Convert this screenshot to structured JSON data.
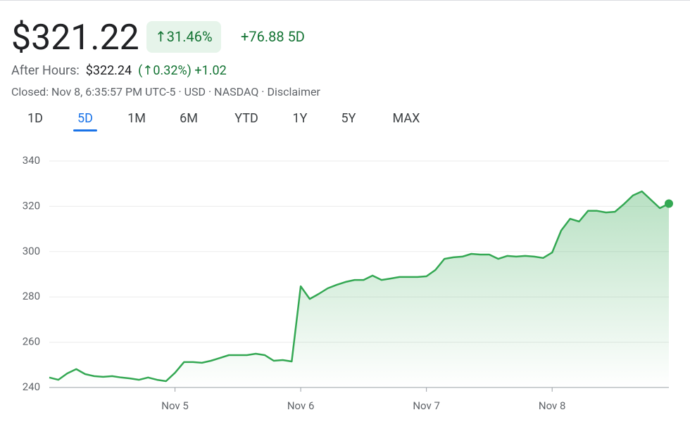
{
  "header": {
    "price": "$321.22",
    "change_pct": "↑31.46%",
    "change_abs": "+76.88",
    "period": "5D",
    "after_hours_label": "After Hours:",
    "after_hours_price": "$322.24",
    "after_hours_pct": "(↑0.32%)",
    "after_hours_abs": "+1.02",
    "closed_info": "Closed: Nov 8, 6:35:57 PM UTC-5 · USD · NASDAQ ·",
    "disclaimer": "Disclaimer"
  },
  "tabs": {
    "items": [
      "1D",
      "5D",
      "1M",
      "6M",
      "YTD",
      "1Y",
      "5Y",
      "MAX"
    ],
    "selected": "5D"
  },
  "chart_data": {
    "type": "line",
    "categories": [
      null,
      null,
      null,
      null,
      null,
      null,
      null,
      null,
      null,
      null,
      null,
      null,
      null,
      null,
      "Nov 5",
      null,
      null,
      null,
      null,
      null,
      null,
      null,
      null,
      null,
      null,
      null,
      null,
      null,
      "Nov 6",
      null,
      null,
      null,
      null,
      null,
      null,
      null,
      null,
      null,
      null,
      null,
      null,
      null,
      "Nov 7",
      null,
      null,
      null,
      null,
      null,
      null,
      null,
      null,
      null,
      null,
      null,
      null,
      null,
      "Nov 8",
      null,
      null,
      null,
      null,
      null,
      null,
      null,
      null,
      null,
      null,
      null,
      null,
      null
    ],
    "series": [
      {
        "color": "#34a853",
        "values": [
          244.4,
          243.4,
          246.2,
          248.1,
          245.9,
          245,
          244.7,
          245,
          244.4,
          244,
          243.4,
          244.4,
          243.4,
          242.8,
          246.5,
          251.2,
          251.2,
          250.9,
          251.8,
          253,
          254.3,
          254.3,
          254.3,
          254.9,
          254.3,
          251.8,
          252.1,
          251.5,
          284.7,
          279.1,
          281.3,
          283.8,
          285.3,
          286.6,
          287.5,
          287.5,
          289.4,
          287.5,
          288.1,
          288.8,
          288.8,
          288.8,
          289.1,
          291.9,
          296.8,
          297.5,
          297.8,
          299,
          298.7,
          298.7,
          296.8,
          298.1,
          297.8,
          298.1,
          297.8,
          297.2,
          299.6,
          309.3,
          314.5,
          313.3,
          318,
          318,
          317.3,
          317.6,
          321,
          324.8,
          326.6,
          322.9,
          319.2,
          321.22
        ]
      }
    ],
    "ylim": [
      240,
      340
    ],
    "yticks": [
      240,
      260,
      280,
      300,
      320,
      340
    ],
    "grid": true
  }
}
